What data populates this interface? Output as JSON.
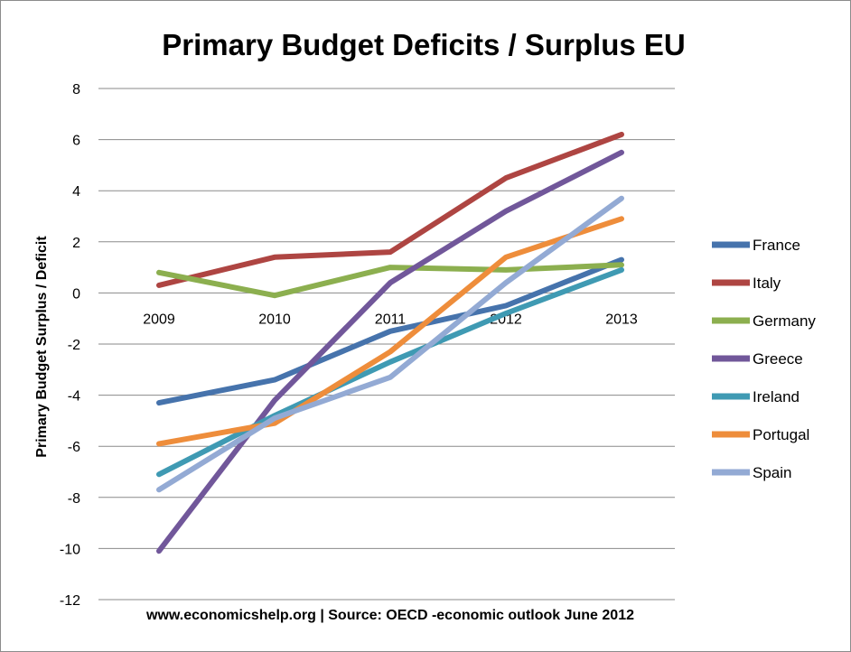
{
  "chart_data": {
    "type": "line",
    "title": "Primary Budget Deficits / Surplus EU",
    "xlabel": "",
    "ylabel": "Primary Budget Surplus / Deficit",
    "source": "www.economicshelp.org | Source: OECD -economic outlook June 2012",
    "categories": [
      "2009",
      "2010",
      "2011",
      "2012",
      "2013"
    ],
    "ylim": [
      -12,
      8
    ],
    "yticks": [
      8,
      6,
      4,
      2,
      0,
      -2,
      -4,
      -6,
      -8,
      -10,
      -12
    ],
    "grid": true,
    "legend_position": "right",
    "series": [
      {
        "name": "France",
        "color": "#4673ac",
        "values": [
          -4.3,
          -3.4,
          -1.5,
          -0.5,
          1.3
        ]
      },
      {
        "name": "Italy",
        "color": "#ae4542",
        "values": [
          0.3,
          1.4,
          1.6,
          4.5,
          6.2
        ]
      },
      {
        "name": "Germany",
        "color": "#8caf4f",
        "values": [
          0.8,
          -0.1,
          1.0,
          0.9,
          1.1
        ]
      },
      {
        "name": "Greece",
        "color": "#71579a",
        "values": [
          -10.1,
          -4.2,
          0.4,
          3.2,
          5.5
        ]
      },
      {
        "name": "Ireland",
        "color": "#3f9ab3",
        "values": [
          -7.1,
          -4.8,
          -2.7,
          -0.8,
          0.9
        ]
      },
      {
        "name": "Portugal",
        "color": "#ee8d3b",
        "values": [
          -5.9,
          -5.1,
          -2.3,
          1.4,
          2.9
        ]
      },
      {
        "name": "Spain",
        "color": "#93aad4",
        "values": [
          -7.7,
          -4.9,
          -3.3,
          0.4,
          3.7
        ]
      }
    ]
  }
}
